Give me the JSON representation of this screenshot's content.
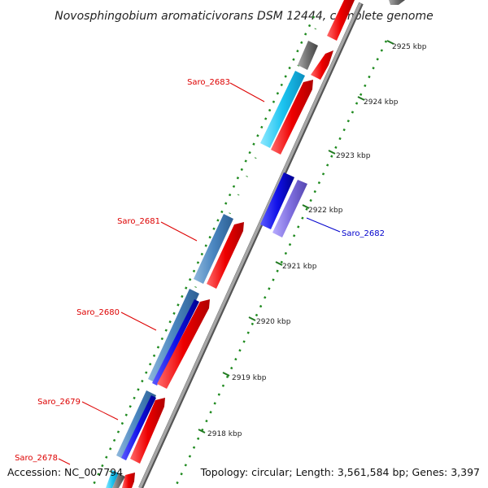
{
  "title": "Novosphingobium aromaticivorans DSM 12444, complete genome",
  "footer": {
    "accession": "Accession: NC_007794",
    "topology": "Topology: circular; Length: 3,561,584 bp; Genes: 3,397"
  },
  "ticks": [
    "2925 kbp",
    "2924 kbp",
    "2923 kbp",
    "2922 kbp",
    "2921 kbp",
    "2920 kbp",
    "2919 kbp",
    "2918 kbp"
  ],
  "gene_labels": [
    {
      "text": "Saro_2683",
      "color": "#dd0000"
    },
    {
      "text": "Saro_2682",
      "color": "#0000cc"
    },
    {
      "text": "Saro_2681",
      "color": "#dd0000"
    },
    {
      "text": "Saro_2680",
      "color": "#dd0000"
    },
    {
      "text": "Saro_2679",
      "color": "#dd0000"
    },
    {
      "text": "Saro_2678",
      "color": "#dd0000"
    }
  ],
  "colors": {
    "cds_forward": "#ff1111",
    "cds_reverse": "#1010e8",
    "backbone": "#8c8c8c",
    "gc_ticks": "#1f8a1f",
    "cyan": "#22c8f0",
    "steelblue": "#4a86c0",
    "lavender": "#8070e0",
    "gray": "#707070"
  }
}
